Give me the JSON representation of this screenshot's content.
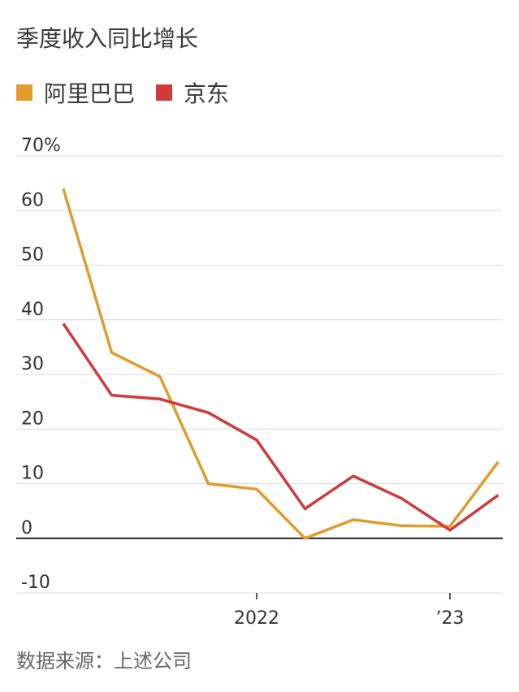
{
  "title": "季度收入同比增长",
  "source": "数据来源：上述公司",
  "legend": [
    {
      "name": "阿里巴巴",
      "color": "#e09b2d"
    },
    {
      "name": "京东",
      "color": "#d13a3a"
    }
  ],
  "chart_data": {
    "type": "line",
    "title": "季度收入同比增长",
    "xlabel": "",
    "ylabel": "",
    "ylim": [
      -10,
      70
    ],
    "y_ticks": [
      {
        "value": 70,
        "label": "70%"
      },
      {
        "value": 60,
        "label": "60"
      },
      {
        "value": 50,
        "label": "50"
      },
      {
        "value": 40,
        "label": "40"
      },
      {
        "value": 30,
        "label": "30"
      },
      {
        "value": 20,
        "label": "20"
      },
      {
        "value": 10,
        "label": "10"
      },
      {
        "value": 0,
        "label": "0"
      },
      {
        "value": -10,
        "label": "-10"
      }
    ],
    "x_ticks": [
      {
        "index": 4,
        "label": "2022"
      },
      {
        "index": 8,
        "label": "’23"
      }
    ],
    "x_count": 10,
    "series": [
      {
        "name": "阿里巴巴",
        "color": "#e09b2d",
        "values": [
          64,
          34,
          29.6,
          10,
          9,
          0,
          3.4,
          2.3,
          2.2,
          14
        ]
      },
      {
        "name": "京东",
        "color": "#d13a3a",
        "values": [
          39.3,
          26.2,
          25.5,
          23,
          18,
          5.4,
          11.4,
          7.3,
          1.5,
          7.9
        ]
      }
    ],
    "grid": true
  }
}
